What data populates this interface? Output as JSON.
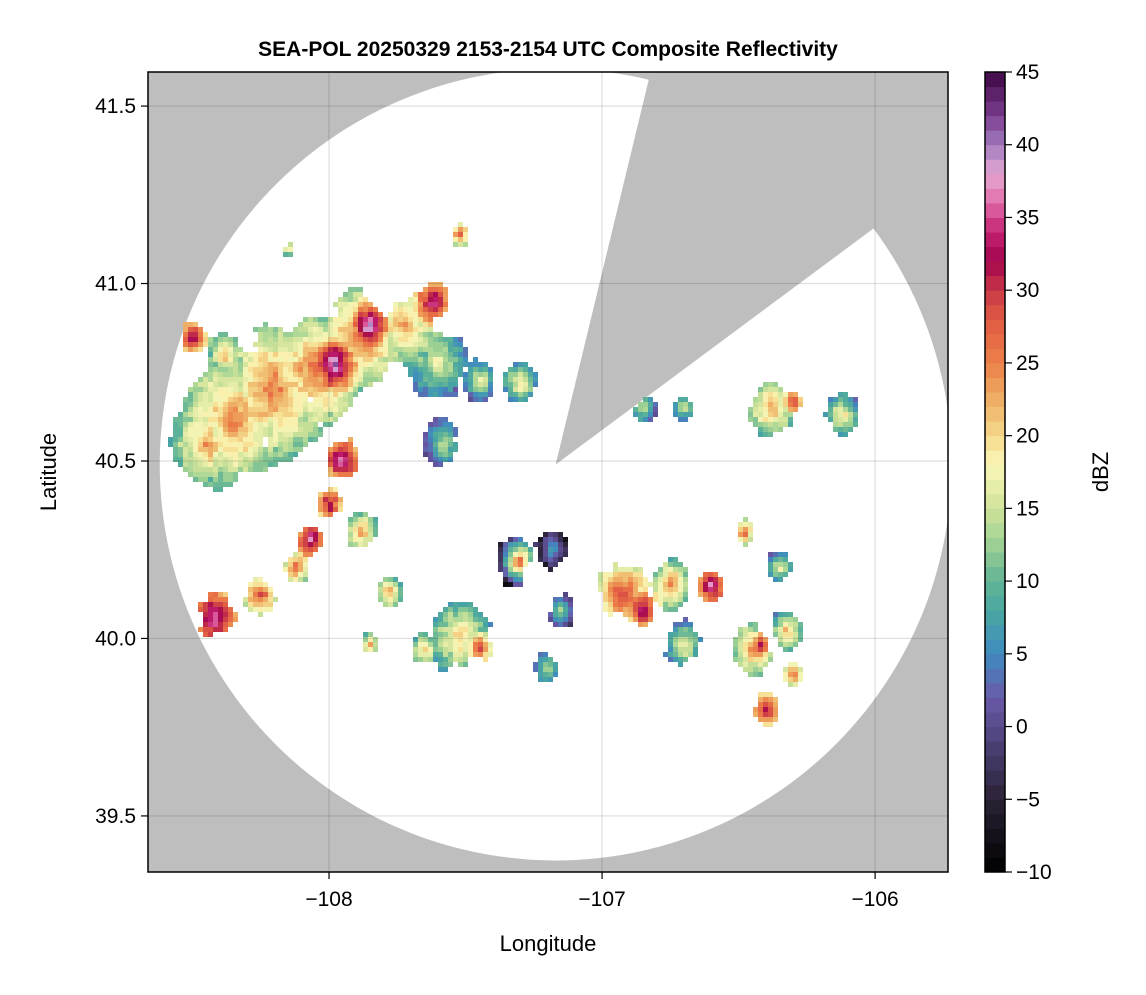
{
  "chart_data": {
    "type": "heatmap",
    "title": "SEA-POL 20250329 2153-2154 UTC Composite Reflectivity",
    "xlabel": "Longitude",
    "ylabel": "Latitude",
    "xlim": [
      -108.663,
      -105.733
    ],
    "ylim": [
      39.342,
      41.596
    ],
    "xticks": [
      -108,
      -107,
      -106
    ],
    "xtick_labels": [
      "−108",
      "−107",
      "−106"
    ],
    "yticks": [
      39.5,
      40.0,
      40.5,
      41.0,
      41.5
    ],
    "ytick_labels": [
      "39.5",
      "40.0",
      "40.5",
      "41.0",
      "41.5"
    ],
    "grid": true,
    "background_color": "#bebebe",
    "radar": {
      "lon": -107.17,
      "lat": 40.49,
      "range_lon_deg": 1.45,
      "range_lat_deg": 1.115
    },
    "blocked_sector_azimuth_deg": [
      13.6,
      53.4
    ],
    "colorbar": {
      "label": "dBZ",
      "range": [
        -10,
        45
      ],
      "step": 1,
      "ticks": [
        -10,
        -5,
        0,
        5,
        10,
        15,
        20,
        25,
        30,
        35,
        40,
        45
      ],
      "tick_labels": [
        "−10",
        "−5",
        "0",
        "5",
        "10",
        "15",
        "20",
        "25",
        "30",
        "35",
        "40",
        "45"
      ],
      "colormap_stops": [
        [
          -10,
          "#000000"
        ],
        [
          -5,
          "#2a2235"
        ],
        [
          0,
          "#584a8a"
        ],
        [
          2,
          "#6a5aa8"
        ],
        [
          5,
          "#3f8ac0"
        ],
        [
          8,
          "#4aa8a0"
        ],
        [
          10,
          "#62b496"
        ],
        [
          13,
          "#a6d494"
        ],
        [
          15,
          "#cfe29a"
        ],
        [
          18,
          "#faf7b8"
        ],
        [
          20,
          "#f4d98a"
        ],
        [
          23,
          "#eda55e"
        ],
        [
          25,
          "#ec8048"
        ],
        [
          28,
          "#e05a42"
        ],
        [
          30,
          "#c83848"
        ],
        [
          32,
          "#a3044d"
        ],
        [
          34,
          "#c42372"
        ],
        [
          36,
          "#e06aa8"
        ],
        [
          38,
          "#e6a8d4"
        ],
        [
          40,
          "#a27cbd"
        ],
        [
          42,
          "#7b3d8f"
        ],
        [
          45,
          "#3e0745"
        ]
      ]
    },
    "echo_cells": [
      {
        "lon": -108.35,
        "lat": 40.62,
        "size": 0.16,
        "peak": 25
      },
      {
        "lon": -108.2,
        "lat": 40.7,
        "size": 0.16,
        "peak": 26
      },
      {
        "lon": -108.45,
        "lat": 40.55,
        "size": 0.1,
        "peak": 24
      },
      {
        "lon": -108.05,
        "lat": 40.75,
        "size": 0.13,
        "peak": 27
      },
      {
        "lon": -107.98,
        "lat": 40.77,
        "size": 0.05,
        "peak": 40
      },
      {
        "lon": -107.88,
        "lat": 40.85,
        "size": 0.12,
        "peak": 27
      },
      {
        "lon": -107.85,
        "lat": 40.88,
        "size": 0.04,
        "peak": 41
      },
      {
        "lon": -107.72,
        "lat": 40.88,
        "size": 0.1,
        "peak": 24
      },
      {
        "lon": -107.62,
        "lat": 40.95,
        "size": 0.05,
        "peak": 36
      },
      {
        "lon": -107.6,
        "lat": 40.78,
        "size": 0.09,
        "peak": 18
      },
      {
        "lon": -108.5,
        "lat": 40.85,
        "size": 0.04,
        "peak": 34
      },
      {
        "lon": -108.38,
        "lat": 40.8,
        "size": 0.06,
        "peak": 22
      },
      {
        "lon": -107.95,
        "lat": 40.5,
        "size": 0.05,
        "peak": 38
      },
      {
        "lon": -108.0,
        "lat": 40.38,
        "size": 0.04,
        "peak": 34
      },
      {
        "lon": -108.07,
        "lat": 40.28,
        "size": 0.04,
        "peak": 37
      },
      {
        "lon": -108.12,
        "lat": 40.2,
        "size": 0.04,
        "peak": 28
      },
      {
        "lon": -108.25,
        "lat": 40.12,
        "size": 0.05,
        "peak": 30
      },
      {
        "lon": -108.42,
        "lat": 40.06,
        "size": 0.06,
        "peak": 38
      },
      {
        "lon": -107.88,
        "lat": 40.3,
        "size": 0.05,
        "peak": 24
      },
      {
        "lon": -107.78,
        "lat": 40.13,
        "size": 0.04,
        "peak": 24
      },
      {
        "lon": -107.58,
        "lat": 40.55,
        "size": 0.06,
        "peak": 16
      },
      {
        "lon": -107.45,
        "lat": 40.73,
        "size": 0.05,
        "peak": 18
      },
      {
        "lon": -107.3,
        "lat": 40.72,
        "size": 0.05,
        "peak": 20
      },
      {
        "lon": -107.52,
        "lat": 41.14,
        "size": 0.03,
        "peak": 28
      },
      {
        "lon": -108.15,
        "lat": 41.1,
        "size": 0.02,
        "peak": 22
      },
      {
        "lon": -107.52,
        "lat": 40.0,
        "size": 0.09,
        "peak": 22
      },
      {
        "lon": -107.45,
        "lat": 39.97,
        "size": 0.04,
        "peak": 30
      },
      {
        "lon": -107.65,
        "lat": 39.97,
        "size": 0.04,
        "peak": 22
      },
      {
        "lon": -107.32,
        "lat": 40.22,
        "size": 0.06,
        "peak": 9
      },
      {
        "lon": -107.18,
        "lat": 40.25,
        "size": 0.05,
        "peak": 8
      },
      {
        "lon": -107.3,
        "lat": 40.22,
        "size": 0.03,
        "peak": 28
      },
      {
        "lon": -107.15,
        "lat": 40.08,
        "size": 0.04,
        "peak": 14
      },
      {
        "lon": -107.2,
        "lat": 39.92,
        "size": 0.04,
        "peak": 17
      },
      {
        "lon": -106.92,
        "lat": 40.12,
        "size": 0.08,
        "peak": 30
      },
      {
        "lon": -106.85,
        "lat": 40.08,
        "size": 0.04,
        "peak": 37
      },
      {
        "lon": -106.75,
        "lat": 40.15,
        "size": 0.06,
        "peak": 25
      },
      {
        "lon": -106.6,
        "lat": 40.15,
        "size": 0.04,
        "peak": 38
      },
      {
        "lon": -106.7,
        "lat": 39.98,
        "size": 0.06,
        "peak": 18
      },
      {
        "lon": -106.45,
        "lat": 39.97,
        "size": 0.06,
        "peak": 26
      },
      {
        "lon": -106.42,
        "lat": 39.98,
        "size": 0.03,
        "peak": 34
      },
      {
        "lon": -106.32,
        "lat": 40.02,
        "size": 0.05,
        "peak": 22
      },
      {
        "lon": -106.4,
        "lat": 39.8,
        "size": 0.04,
        "peak": 33
      },
      {
        "lon": -106.3,
        "lat": 39.9,
        "size": 0.03,
        "peak": 28
      },
      {
        "lon": -106.38,
        "lat": 40.65,
        "size": 0.07,
        "peak": 24
      },
      {
        "lon": -106.3,
        "lat": 40.67,
        "size": 0.03,
        "peak": 32
      },
      {
        "lon": -106.12,
        "lat": 40.63,
        "size": 0.05,
        "peak": 20
      },
      {
        "lon": -106.35,
        "lat": 40.2,
        "size": 0.04,
        "peak": 18
      },
      {
        "lon": -106.85,
        "lat": 40.65,
        "size": 0.04,
        "peak": 16
      },
      {
        "lon": -106.7,
        "lat": 40.65,
        "size": 0.03,
        "peak": 18
      },
      {
        "lon": -106.48,
        "lat": 40.3,
        "size": 0.03,
        "peak": 28
      },
      {
        "lon": -107.85,
        "lat": 39.98,
        "size": 0.03,
        "peak": 24
      }
    ]
  }
}
